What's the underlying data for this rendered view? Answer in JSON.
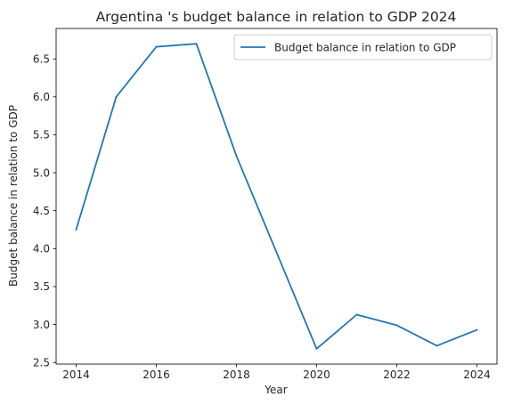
{
  "chart_data": {
    "type": "line",
    "title": "Argentina 's budget balance in relation to GDP 2024",
    "xlabel": "Year",
    "ylabel": "Budget balance in relation to GDP",
    "x": [
      2014,
      2015,
      2016,
      2017,
      2018,
      2019,
      2020,
      2021,
      2022,
      2023,
      2024
    ],
    "series": [
      {
        "name": "Budget balance in relation to GDP",
        "color": "#1f77b4",
        "values": [
          4.25,
          6.0,
          6.66,
          6.7,
          5.22,
          3.95,
          2.68,
          3.13,
          2.99,
          2.72,
          2.93
        ]
      }
    ],
    "xticks": [
      2014,
      2016,
      2018,
      2020,
      2022,
      2024
    ],
    "xtick_labels": [
      "2014",
      "2016",
      "2018",
      "2020",
      "2022",
      "2024"
    ],
    "yticks": [
      2.5,
      3.0,
      3.5,
      4.0,
      4.5,
      5.0,
      5.5,
      6.0,
      6.5
    ],
    "ytick_labels": [
      "2.5",
      "3.0",
      "3.5",
      "4.0",
      "4.5",
      "5.0",
      "5.5",
      "6.0",
      "6.5"
    ],
    "xlim": [
      2013.5,
      2024.5
    ],
    "ylim": [
      2.479,
      6.901
    ],
    "grid": false,
    "legend_position": "top-right"
  }
}
